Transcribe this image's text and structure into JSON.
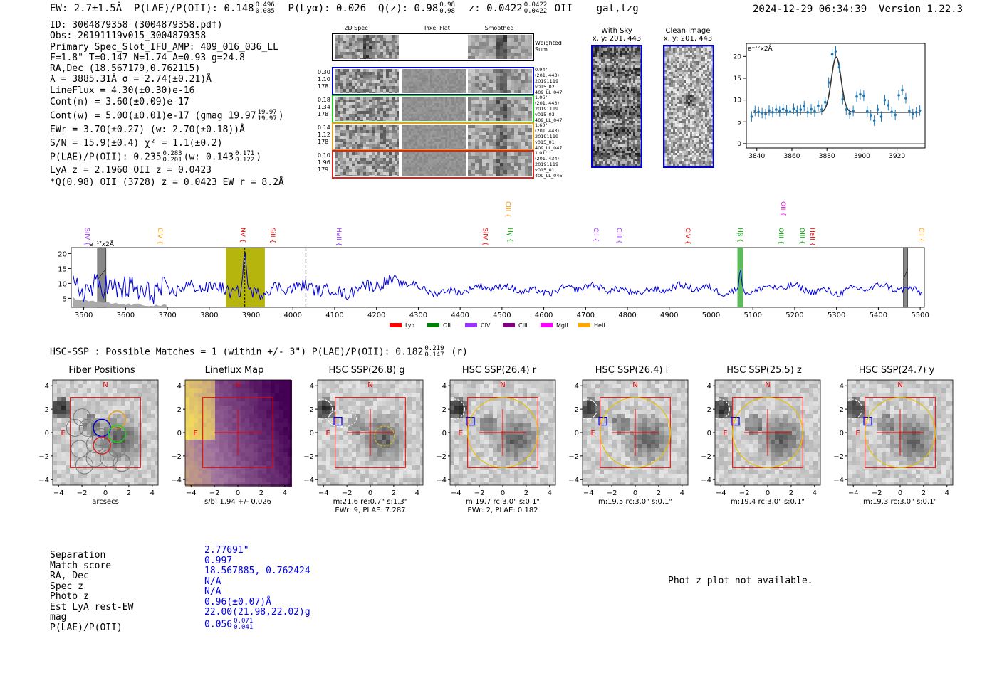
{
  "header": {
    "ew": "EW: 2.7±1.5Å",
    "plae_label": "P(LAE)/P(OII): 0.148",
    "plae_hi": "0.496",
    "plae_lo": "0.085",
    "plya": "P(Lyα): 0.026",
    "qz_label": "Q(z): 0.98",
    "qz_hi": "0.98",
    "qz_lo": "0.98",
    "z_label": "z: 0.0422",
    "z_hi": "0.0422",
    "z_lo": "0.0422",
    "z_line": "OII",
    "flags": "gal,lzg",
    "timestamp": "2024-12-29 06:34:39",
    "version": "Version 1.22.3"
  },
  "info": {
    "id": "ID: 3004879358 (3004879358.pdf)",
    "obs": "Obs: 20191119v015_3004879358",
    "primary": "Primary Spec_Slot_IFU_AMP: 409_016_036_LL",
    "fwhm": "F=1.8\"  T=0.147  N=1.74  A=0.93  g=24.8",
    "radec": "RA,Dec (18.567179,0.762115)",
    "lambda": "λ = 3885.31Å  σ = 2.74(±0.21)Å",
    "lineflux": "LineFlux = 4.30(±0.30)e-16",
    "contn": "Cont(n) = 3.60(±0.09)e-17",
    "contw": "Cont(w) = 5.00(±0.01)e-17 (gmag 19.97",
    "contw_hi": "19.97",
    "contw_lo": "19.97",
    "contw_end": ")",
    "ewr": "EWr = 3.70(±0.27) (w: 2.70(±0.18))Å",
    "sn": "S/N = 15.9(±0.4)  χ² = 1.1(±0.2)",
    "plae": "P(LAE)/P(OII): 0.235",
    "plae_hi": "0.283",
    "plae_lo": "0.201",
    "plae_w": "(w: 0.143",
    "plae_w_hi": "0.171",
    "plae_w_lo": "0.122",
    "plae_w_end": ")",
    "lya": "LyA z = 2.1960  OII z = 0.0423",
    "q": "*Q(0.98) OII (3728) z = 0.0423  EW r = 8.2Å"
  },
  "cutouts": {
    "col_headers": [
      "2D Spec",
      "Pixel Flat",
      "Smoothed"
    ],
    "weighted_sum": "Weighted Sum",
    "rows": [
      {
        "vals": [
          "0.30",
          "1.10",
          "178"
        ],
        "meta": [
          "0.94\"",
          "(201, 443)",
          "20191119",
          "v015_02",
          "409_LL_047"
        ],
        "color": "#0000cc"
      },
      {
        "vals": [
          "0.18",
          "1.34",
          "178"
        ],
        "meta": [
          "1.06\"",
          "(201, 443)",
          "20191119",
          "v015_03",
          "409_LL_047"
        ],
        "color": "#22cc22"
      },
      {
        "vals": [
          "0.14",
          "1.12",
          "178"
        ],
        "meta": [
          "1.60\"",
          "(201, 443)",
          "20191119",
          "v015_01",
          "409_LL_047"
        ],
        "color": "#e8a020"
      },
      {
        "vals": [
          "0.10",
          "1.96",
          "179"
        ],
        "meta": [
          "1.01\"",
          "(201, 434)",
          "20191119",
          "v015_01",
          "409_LL_046"
        ],
        "color": "#dd2222"
      }
    ],
    "with_sky": "With Sky",
    "with_sky_xy": "x, y: 201, 443",
    "clean": "Clean Image",
    "clean_xy": "x, y: 201, 443"
  },
  "zoom_chart": {
    "type": "line",
    "unit": "e⁻¹⁷x2Å",
    "xlim": [
      3834,
      3936
    ],
    "ylim": [
      -1,
      23
    ],
    "xticks": [
      "3840",
      "3860",
      "3880",
      "3900",
      "3920"
    ],
    "yticks": [
      "0",
      "5",
      "10",
      "15",
      "20"
    ],
    "fit_center": 3885.3,
    "fit_sigma": 2.74,
    "fit_base": 7.2,
    "fit_amp": 12.7,
    "x": [
      3837,
      3839,
      3841,
      3843,
      3845,
      3847,
      3849,
      3851,
      3853,
      3855,
      3857,
      3859,
      3861,
      3863,
      3865,
      3867,
      3869,
      3871,
      3873,
      3875,
      3877,
      3879,
      3881,
      3883,
      3885,
      3887,
      3889,
      3891,
      3893,
      3895,
      3897,
      3899,
      3901,
      3903,
      3905,
      3907,
      3909,
      3911,
      3913,
      3915,
      3917,
      3919,
      3921,
      3923,
      3925,
      3927,
      3929,
      3931,
      3933
    ],
    "y": [
      6.2,
      7.5,
      7.3,
      7.0,
      6.8,
      7.6,
      7.2,
      7.8,
      7.4,
      7.9,
      7.6,
      7.3,
      8.0,
      7.5,
      7.8,
      8.6,
      7.2,
      7.9,
      7.4,
      8.7,
      7.8,
      9.5,
      14.0,
      20.5,
      21.2,
      17.5,
      10.2,
      7.8,
      6.9,
      7.5,
      10.8,
      11.3,
      11.0,
      7.4,
      6.5,
      5.3,
      7.8,
      6.2,
      10.0,
      8.8,
      7.3,
      6.6,
      11.1,
      12.3,
      10.4,
      7.5,
      6.8,
      7.2,
      7.6
    ]
  },
  "spectrum": {
    "type": "line",
    "unit": "e⁻¹⁷x2Å",
    "xlim": [
      3470,
      5510
    ],
    "ylim": [
      2,
      22
    ],
    "xticks": [
      "3500",
      "3600",
      "3700",
      "3800",
      "3900",
      "4000",
      "4100",
      "4200",
      "4300",
      "4400",
      "4500",
      "4600",
      "4700",
      "4800",
      "4900",
      "5000",
      "5100",
      "5200",
      "5300",
      "5400",
      "5500"
    ],
    "yticks": [
      "5",
      "10",
      "15",
      "20"
    ],
    "highlight_band": [
      3840,
      3933
    ],
    "line_marker": 3885,
    "dashed_marker": 4031,
    "green_band": [
      5063,
      5077
    ],
    "grey_bands": [
      [
        3533,
        3553
      ],
      [
        5460,
        5470
      ]
    ],
    "line_labels": [
      {
        "text": "SiIV",
        "x": 3508,
        "color": "#9933ff",
        "row": 0
      },
      {
        "text": "CIV",
        "x": 3683,
        "color": "#ff9900",
        "row": 0
      },
      {
        "text": "NV",
        "x": 3880,
        "color": "#ee0000",
        "row": 0
      },
      {
        "text": "SiII",
        "x": 3952,
        "color": "#ee0000",
        "row": 0
      },
      {
        "text": "HeII",
        "x": 4110,
        "color": "#9933ff",
        "row": 0
      },
      {
        "text": "SiIV",
        "x": 4460,
        "color": "#ee0000",
        "row": 0
      },
      {
        "text": "CIII",
        "x": 4515,
        "color": "#ff9900",
        "row": 1
      },
      {
        "text": "Hγ",
        "x": 4520,
        "color": "#00aa00",
        "row": 0
      },
      {
        "text": "CII",
        "x": 4725,
        "color": "#9933ff",
        "row": 0
      },
      {
        "text": "CIII",
        "x": 4780,
        "color": "#9933ff",
        "row": 0
      },
      {
        "text": "CIV",
        "x": 4945,
        "color": "#ee0000",
        "row": 0
      },
      {
        "text": "Hβ",
        "x": 5070,
        "color": "#00aa00",
        "row": 0
      },
      {
        "text": "OII",
        "x": 5173,
        "color": "#ee00ee",
        "row": 1
      },
      {
        "text": "OIII",
        "x": 5168,
        "color": "#00aa00",
        "row": 0
      },
      {
        "text": "OIII",
        "x": 5218,
        "color": "#00aa00",
        "row": 0
      },
      {
        "text": "HeII",
        "x": 5243,
        "color": "#ee0000",
        "row": 0
      },
      {
        "text": "CII",
        "x": 5503,
        "color": "#ff9900",
        "row": 0
      }
    ],
    "legend": [
      {
        "name": "Lyα",
        "color": "#ff0000"
      },
      {
        "name": "OII",
        "color": "#008000"
      },
      {
        "name": "CIV",
        "color": "#9933ff"
      },
      {
        "name": "CIII",
        "color": "#800080"
      },
      {
        "name": "MgII",
        "color": "#ff00ff"
      },
      {
        "name": "HeII",
        "color": "#ffa500"
      }
    ]
  },
  "hsc": {
    "title": "HSC-SSP : Possible Matches = 1 (within +/- 3\")  P(LAE)/P(OII): 0.182",
    "hi": "0.219",
    "lo": "0.147",
    "band": "(r)",
    "panels": [
      {
        "title": "Fiber Positions",
        "cap1": "arcsecs",
        "cap2": "",
        "kind": "fiber"
      },
      {
        "title": "Lineflux Map",
        "cap1": "s/b: 1.94 +/- 0.026",
        "cap2": "",
        "kind": "flux"
      },
      {
        "title": "HSC SSP(26.8) g",
        "cap1": "m:21.6  re:0.7\"  s:1.3\"",
        "cap2": "EWr: 9, PLAE: 7.287",
        "kind": "g"
      },
      {
        "title": "HSC SSP(26.4) r",
        "cap1": "m:19.7 rc:3.0\"  s:0.1\"",
        "cap2": "EWr: 2, PLAE: 0.182",
        "kind": "big"
      },
      {
        "title": "HSC SSP(26.4) i",
        "cap1": "m:19.5 rc:3.0\"  s:0.1\"",
        "cap2": "",
        "kind": "big"
      },
      {
        "title": "HSC SSP(25.5) z",
        "cap1": "m:19.4 rc:3.0\"  s:0.1\"",
        "cap2": "",
        "kind": "big"
      },
      {
        "title": "HSC SSP(24.7) y",
        "cap1": "m:19.3 rc:3.0\"  s:0.1\"",
        "cap2": "",
        "kind": "big"
      }
    ],
    "axis_ticks": [
      "4",
      "2",
      "0",
      "−2",
      "−4"
    ],
    "x_ticks": [
      "−4",
      "−2",
      "0",
      "2",
      "4"
    ],
    "n_label": "N",
    "e_label": "E"
  },
  "match": {
    "labels": [
      "Separation",
      "Match score",
      "RA, Dec",
      "Spec z",
      "Photo z",
      "Est LyA rest-EW",
      "mag",
      "P(LAE)/P(OII)"
    ],
    "values": [
      "2.77691\"",
      "0.997",
      "18.567885, 0.762424",
      "N/A",
      "N/A",
      "0.96(±0.07)Å",
      "22.00(21.98,22.02)g",
      "0.056"
    ],
    "plae_hi": "0.071",
    "plae_lo": "0.041",
    "photz": "Phot z plot not available."
  }
}
